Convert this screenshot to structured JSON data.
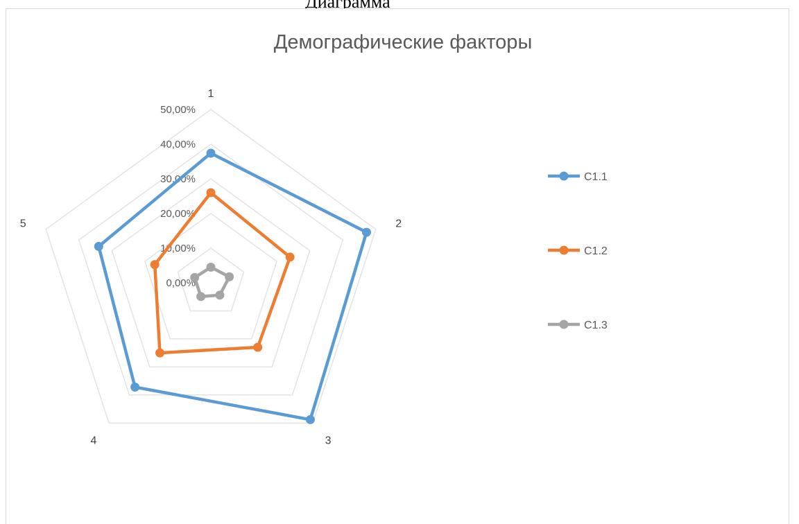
{
  "page": {
    "top_fragment": "Диаграмма"
  },
  "chart_data": {
    "type": "radar",
    "title": "Демографические факторы",
    "categories": [
      "1",
      "2",
      "3",
      "4",
      "5"
    ],
    "r_ticks": [
      "0,00%",
      "10,00%",
      "20,00%",
      "30,00%",
      "40,00%",
      "50,00%"
    ],
    "r_range": [
      0,
      50
    ],
    "grid": true,
    "legend_position": "right",
    "series": [
      {
        "name": "C1.1",
        "values": [
          37.4,
          47.2,
          48.8,
          37.2,
          34.0
        ],
        "color": "#5b9bd5"
      },
      {
        "name": "C1.2",
        "values": [
          26.0,
          24.0,
          23.0,
          25.0,
          17.0
        ],
        "color": "#ed7d31"
      },
      {
        "name": "C1.3",
        "values": [
          4.5,
          5.6,
          4.4,
          4.9,
          4.9
        ],
        "color": "#a5a5a5"
      }
    ]
  }
}
